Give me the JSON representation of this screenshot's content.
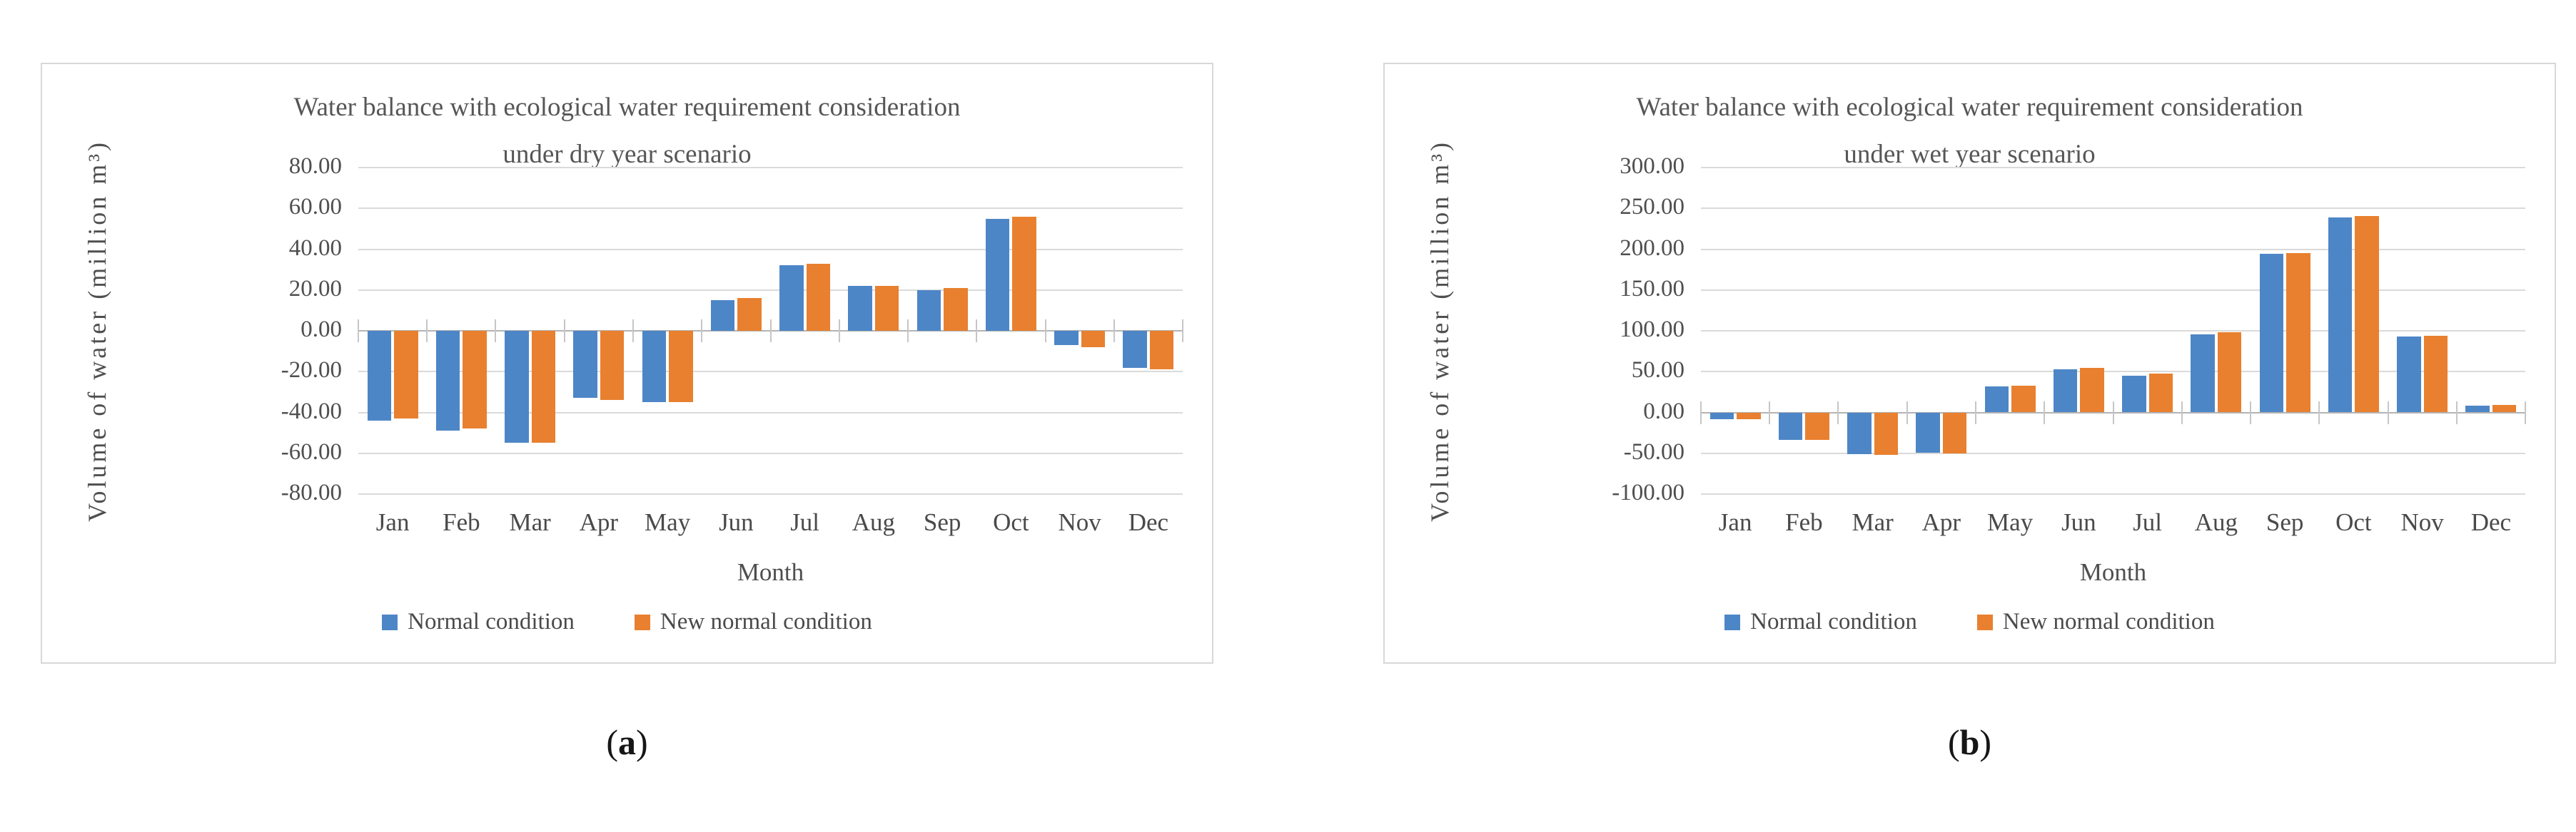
{
  "colors": {
    "series": [
      "#4d86c6",
      "#e8802f"
    ],
    "gridline": "#dadada",
    "zero_axis": "#b3b3b3",
    "category_tick": "#c6c6c6",
    "panel_border": "#d8d8d8",
    "text": "#4f4f4f"
  },
  "charts": [
    {
      "id": "a",
      "title_lines": [
        "Water balance with ecological water requirement consideration",
        "under dry year scenario"
      ],
      "legend": [
        "Normal condition",
        "New normal condition"
      ],
      "caption": {
        "open": "(",
        "letter": "a",
        "close": ")"
      },
      "chart_data": {
        "type": "bar",
        "title": "Water balance with ecological water requirement consideration under dry year scenario",
        "xlabel": "Month",
        "ylabel": "Volume of water (million m³)",
        "categories": [
          "Jan",
          "Feb",
          "Mar",
          "Apr",
          "May",
          "Jun",
          "Jul",
          "Aug",
          "Sep",
          "Oct",
          "Nov",
          "Dec"
        ],
        "series": [
          {
            "name": "Normal condition",
            "values": [
              -44,
              -49,
              -55,
              -33,
              -35,
              15,
              32,
              22,
              20,
              55,
              -7,
              -18
            ]
          },
          {
            "name": "New normal condition",
            "values": [
              -43,
              -48,
              -55,
              -34,
              -35,
              16,
              33,
              22,
              21,
              56,
              -8,
              -19
            ]
          }
        ],
        "ylim": [
          -80,
          80
        ],
        "ytick_step": 20,
        "ytick_decimals": 2,
        "grid": true,
        "legend_position": "bottom"
      }
    },
    {
      "id": "b",
      "title_lines": [
        "Water balance with ecological water requirement consideration",
        "under wet year scenario"
      ],
      "legend": [
        "Normal condition",
        "New normal condition"
      ],
      "caption": {
        "open": "(",
        "letter": "b",
        "close": ")"
      },
      "chart_data": {
        "type": "bar",
        "title": "Water balance with ecological water requirement consideration under wet year scenario",
        "xlabel": "Month",
        "ylabel": "Volume of water (million m³)",
        "categories": [
          "Jan",
          "Feb",
          "Mar",
          "Apr",
          "May",
          "Jun",
          "Jul",
          "Aug",
          "Sep",
          "Oct",
          "Nov",
          "Dec"
        ],
        "series": [
          {
            "name": "Normal condition",
            "values": [
              -8,
              -34,
              -51,
              -49,
              32,
              53,
              45,
              96,
              194,
              239,
              93,
              8
            ]
          },
          {
            "name": "New normal condition",
            "values": [
              -8,
              -34,
              -52,
              -50,
              33,
              55,
              48,
              98,
              195,
              241,
              94,
              9
            ]
          }
        ],
        "ylim": [
          -100,
          300
        ],
        "ytick_step": 50,
        "ytick_decimals": 2,
        "grid": true,
        "legend_position": "bottom"
      }
    }
  ]
}
